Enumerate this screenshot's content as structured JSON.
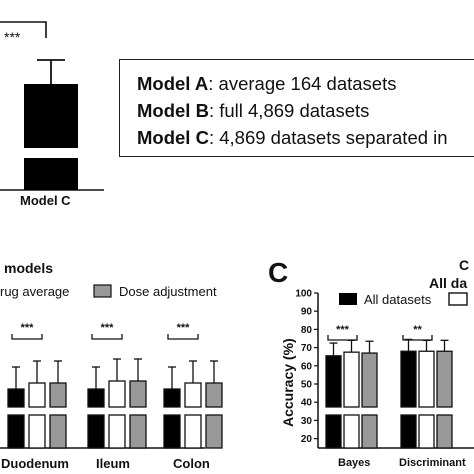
{
  "panel_a": {
    "sig": "***",
    "category": "Model C",
    "legend_lines": [
      {
        "label": "Model A",
        "text": ": average 164 datasets"
      },
      {
        "label": "Model B",
        "text": ": full 4,869 datasets"
      },
      {
        "label": "Model C",
        "text": ": 4,869 datasets separated in"
      }
    ]
  },
  "panel_b": {
    "title": "models",
    "legend": [
      "rug average",
      "Dose adjustment"
    ],
    "categories": [
      "Duodenum",
      "Ileum",
      "Colon"
    ],
    "sig": [
      "***",
      "***",
      "***"
    ]
  },
  "panel_c": {
    "letter": "C",
    "title_partial": "C",
    "subtitle_partial": "All da",
    "ylabel": "Accuracy (%)",
    "yticks": [
      "100",
      "90",
      "80",
      "70",
      "60",
      "50",
      "40",
      "30",
      "20"
    ],
    "legend": [
      "All datasets"
    ],
    "categories": [
      "Bayes",
      "Discriminant"
    ],
    "sig": [
      "***",
      "**"
    ]
  },
  "colors": {
    "black": "#000000",
    "white": "#ffffff",
    "gray": "#999999"
  },
  "chart_data": [
    {
      "type": "bar",
      "panel": "A (partial)",
      "categories": [
        "Model C"
      ],
      "series": [
        {
          "values": [
            null
          ]
        }
      ],
      "annotations": [
        "***"
      ]
    },
    {
      "type": "bar",
      "panel": "B (partial)",
      "categories": [
        "Duodenum",
        "Ileum",
        "Colon"
      ],
      "series": [
        {
          "name": "",
          "values": [
            null,
            null,
            null
          ]
        },
        {
          "name": "rug average",
          "values": [
            null,
            null,
            null
          ]
        },
        {
          "name": "Dose adjustment",
          "values": [
            null,
            null,
            null
          ]
        }
      ],
      "annotations": [
        "***",
        "***",
        "***"
      ]
    },
    {
      "type": "bar",
      "panel": "C (partial)",
      "ylabel": "Accuracy (%)",
      "ylim": [
        20,
        100
      ],
      "yaxis_break": true,
      "categories": [
        "Bayes",
        "Discriminant"
      ],
      "series": [
        {
          "name": "All datasets",
          "values": [
            65.5,
            68.0
          ],
          "errors": [
            7.0,
            6.5
          ]
        },
        {
          "name": "",
          "values": [
            67.5,
            68.0
          ],
          "errors": [
            6.5,
            6.0
          ]
        },
        {
          "name": "",
          "values": [
            67.0,
            68.0
          ],
          "errors": [
            6.5,
            6.0
          ]
        }
      ],
      "annotations": [
        "***",
        "**"
      ]
    }
  ]
}
